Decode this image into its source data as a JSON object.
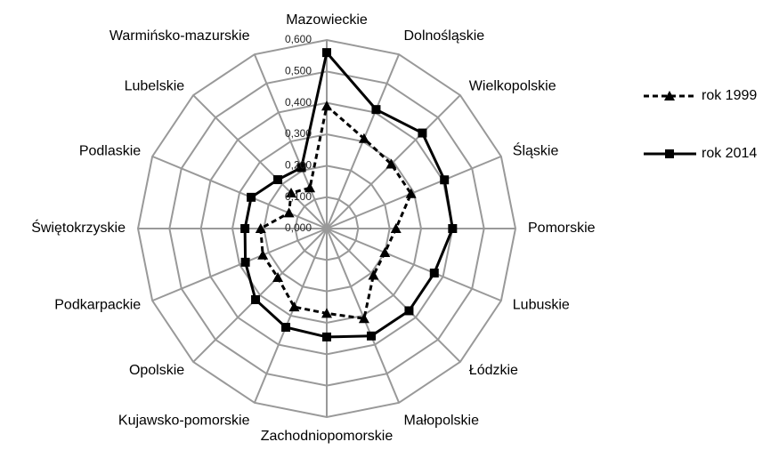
{
  "chart_data": {
    "type": "radar",
    "categories": [
      "Mazowieckie",
      "Dolnośląskie",
      "Wielkopolskie",
      "Śląskie",
      "Pomorskie",
      "Lubuskie",
      "Łódzkie",
      "Małopolskie",
      "Zachodniopomorskie",
      "Kujawsko-pomorskie",
      "Opolskie",
      "Podkarpackie",
      "Świętokrzyskie",
      "Podlaskie",
      "Lubelskie",
      "Warmińsko-mazurskie"
    ],
    "series": [
      {
        "name": "rok 1999",
        "color": "#000000",
        "line_style": "dashed",
        "marker": "triangle",
        "values": [
          0.39,
          0.31,
          0.29,
          0.29,
          0.22,
          0.2,
          0.21,
          0.31,
          0.27,
          0.27,
          0.22,
          0.22,
          0.21,
          0.13,
          0.16,
          0.14
        ]
      },
      {
        "name": "rok 2014",
        "color": "#000000",
        "line_style": "solid",
        "marker": "square",
        "values": [
          0.56,
          0.41,
          0.43,
          0.405,
          0.4,
          0.37,
          0.37,
          0.37,
          0.345,
          0.34,
          0.32,
          0.28,
          0.26,
          0.26,
          0.22,
          0.21
        ]
      }
    ],
    "ylim": [
      0,
      0.6
    ],
    "yticks": [
      {
        "value": 0,
        "label": "0,000"
      },
      {
        "value": 0.1,
        "label": "0,100"
      },
      {
        "value": 0.2,
        "label": "0,200"
      },
      {
        "value": 0.3,
        "label": "0,300"
      },
      {
        "value": 0.4,
        "label": "0,400"
      },
      {
        "value": 0.5,
        "label": "0,500"
      },
      {
        "value": 0.6,
        "label": "0,600"
      }
    ],
    "grid": true,
    "legend": "right"
  }
}
